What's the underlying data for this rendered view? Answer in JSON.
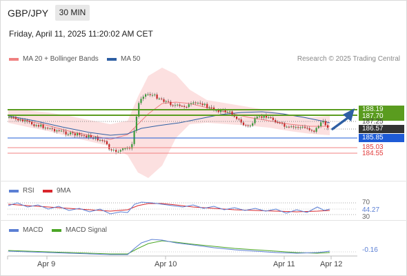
{
  "header": {
    "symbol": "GBP/JPY",
    "timeframe": "30 MIN",
    "datetime": "Friday, April 11, 2025 11:20:02 AM CET",
    "research": "Research © 2025 Trading Central"
  },
  "legend": {
    "ma20_label": "MA 20 + Bollinger Bands",
    "ma20_color": "#f08080",
    "ma50_label": "MA 50",
    "ma50_color": "#2e5fa3"
  },
  "price_levels": {
    "level_188_19": "188.19",
    "level_187_70": "187.70",
    "level_187_25": "187.25",
    "last_price": "186.57",
    "level_185_85": "185.85",
    "level_185_03": "185.03",
    "level_184_55": "184.55"
  },
  "colors": {
    "resistance": "#5a9c1f",
    "support": "#1e5bd6",
    "red_level": "#e23b3b",
    "last_price_bg": "#333333",
    "arrow": "#2e5fa3"
  },
  "rsi": {
    "label": "RSI",
    "ma_label": "9MA",
    "rsi_color": "#5b7fd4",
    "ma_color": "#d9262c",
    "level_70": "70",
    "value": "44.27",
    "level_30": "30"
  },
  "macd": {
    "label": "MACD",
    "signal_label": "MACD Signal",
    "macd_color": "#5b7fd4",
    "signal_color": "#4ca626",
    "value": "-0.16"
  },
  "xaxis": {
    "labels": [
      "Apr 9",
      "Apr 10",
      "Apr 11",
      "Apr 12"
    ]
  }
}
